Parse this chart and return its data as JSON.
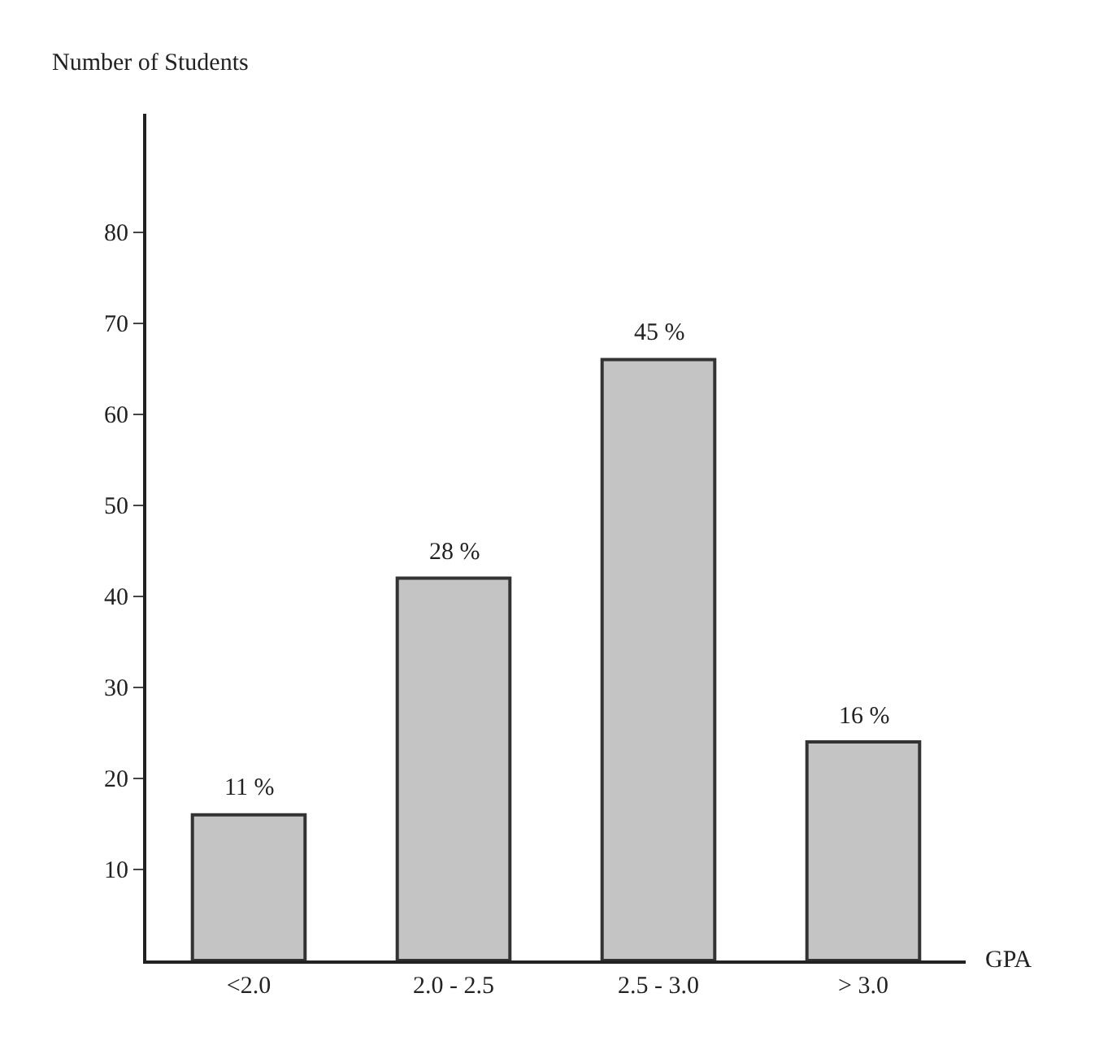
{
  "chart_data": {
    "type": "bar",
    "xlabel": "GPA",
    "ylabel": "Number of Students",
    "categories": [
      "<2.0",
      "2.0 - 2.5",
      "2.5 - 3.0",
      "> 3.0"
    ],
    "values": [
      16,
      42,
      66,
      24
    ],
    "annotations": [
      {
        "text": "11 %",
        "x": "<2.0",
        "y": 16
      },
      {
        "text": "28 %",
        "x": "2.0 - 2.5",
        "y": 42
      },
      {
        "text": "45 %",
        "x": "2.5 - 3.0",
        "y": 66
      },
      {
        "text": "16 %",
        "x": "> 3.0",
        "y": 24
      }
    ],
    "color": "#c4c4c4",
    "ylim": [
      0,
      93
    ],
    "yticks": [
      10,
      20,
      30,
      40,
      50,
      60,
      70,
      80
    ]
  }
}
